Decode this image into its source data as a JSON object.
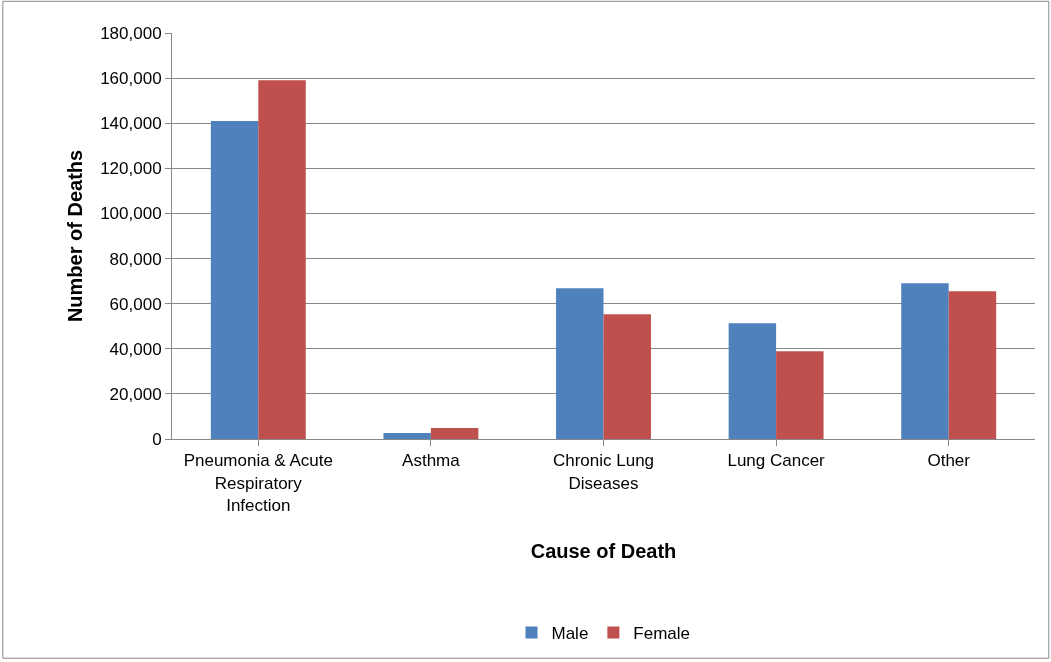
{
  "chart_data": {
    "type": "bar",
    "xlabel": "Cause of Death",
    "ylabel": "Number of Deaths",
    "categories": [
      "Pneumonia & Acute Respiratory Infection",
      "Asthma",
      "Chronic Lung Diseases",
      "Lung Cancer",
      "Other"
    ],
    "series": [
      {
        "name": "Male",
        "color": "#4f81bd",
        "values": [
          141000,
          2700,
          66800,
          51300,
          69000
        ]
      },
      {
        "name": "Female",
        "color": "#c0504d",
        "values": [
          159000,
          4900,
          55300,
          38900,
          65500
        ]
      }
    ],
    "ylim": [
      0,
      180000
    ],
    "yticks": [
      0,
      {
        "value": 20000,
        "label": "20,000"
      },
      {
        "value": 40000,
        "label": "40,000"
      },
      {
        "value": 60000,
        "label": "60,000"
      },
      {
        "value": 80000,
        "label": "80,000"
      },
      {
        "value": 100000,
        "label": "100,000"
      },
      {
        "value": 120000,
        "label": "120,000"
      },
      {
        "value": 140000,
        "label": "140,000"
      },
      {
        "value": 160000,
        "label": "160,000"
      },
      {
        "value": 180000,
        "label": "180,000"
      }
    ],
    "grid": "y",
    "legend": "bottom"
  }
}
